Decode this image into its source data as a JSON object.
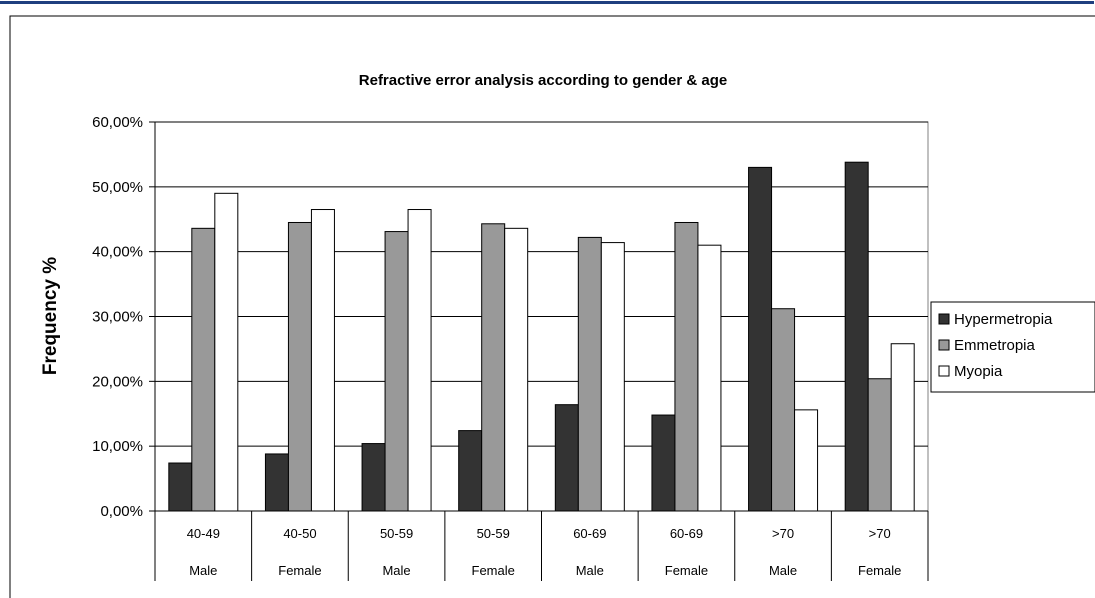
{
  "chart_data": {
    "type": "bar",
    "title": "Refractive error analysis according to gender & age",
    "xlabel": "",
    "ylabel": "Frequency %",
    "ylim": [
      0,
      60
    ],
    "yticks": [
      "0,00%",
      "10,00%",
      "20,00%",
      "30,00%",
      "40,00%",
      "50,00%",
      "60,00%"
    ],
    "grid": true,
    "legend_position": "right",
    "categories": [
      {
        "age": "40-49",
        "gender": "Male"
      },
      {
        "age": "40-50",
        "gender": "Female"
      },
      {
        "age": "50-59",
        "gender": "Male"
      },
      {
        "age": "50-59",
        "gender": "Female"
      },
      {
        "age": "60-69",
        "gender": "Male"
      },
      {
        "age": "60-69",
        "gender": "Female"
      },
      {
        "age": ">70",
        "gender": "Male"
      },
      {
        "age": ">70",
        "gender": "Female"
      }
    ],
    "series": [
      {
        "name": "Hypermetropia",
        "color": "#333333",
        "values": [
          7.4,
          8.8,
          10.4,
          12.4,
          16.4,
          14.8,
          53.0,
          53.8
        ]
      },
      {
        "name": "Emmetropia",
        "color": "#999999",
        "values": [
          43.6,
          44.5,
          43.1,
          44.3,
          42.2,
          44.5,
          31.2,
          20.4
        ]
      },
      {
        "name": "Myopia",
        "color": "#ffffff",
        "values": [
          49.0,
          46.5,
          46.5,
          43.6,
          41.4,
          41.0,
          15.6,
          25.8
        ]
      }
    ]
  },
  "colors": {
    "border": "#1f3f7f",
    "gridline": "#000000",
    "plot_background": "#ffffff"
  }
}
